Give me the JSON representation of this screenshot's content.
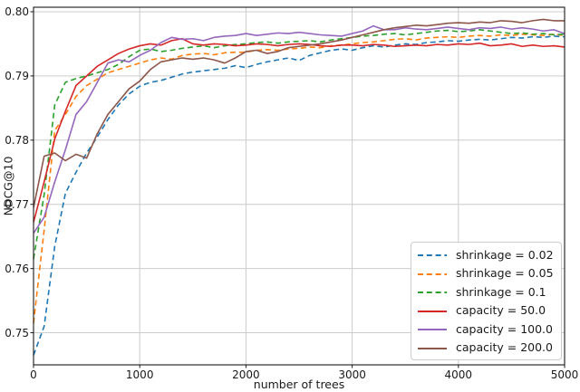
{
  "figure": {
    "background": "#ffffff",
    "axis_color": "#1a1a1a",
    "grid_color": "#cccccc",
    "legend_border_color": "#cccccc"
  },
  "chart_data": {
    "type": "line",
    "title": "",
    "xlabel": "number of trees",
    "ylabel": "NDCG@10",
    "xlim": [
      0,
      5000
    ],
    "ylim": [
      0.745,
      0.8007
    ],
    "grid": true,
    "legend_position": "lower right",
    "x_ticks": [
      0,
      1000,
      2000,
      3000,
      4000,
      5000
    ],
    "x_tick_labels": [
      "0",
      "1000",
      "2000",
      "3000",
      "4000",
      "5000"
    ],
    "y_ticks": [
      0.75,
      0.76,
      0.77,
      0.78,
      0.79,
      0.8
    ],
    "y_tick_labels": [
      "0.75",
      "0.76",
      "0.77",
      "0.78",
      "0.79",
      "0.80"
    ],
    "x_start": 0,
    "x_step": 100,
    "series": [
      {
        "label": "shrinkage = 0.02",
        "color": "#1f77b4",
        "style": "dashed",
        "values": [
          0.7465,
          0.751,
          0.7635,
          0.7717,
          0.775,
          0.778,
          0.7805,
          0.7832,
          0.7855,
          0.7872,
          0.7884,
          0.789,
          0.7893,
          0.7898,
          0.7903,
          0.7906,
          0.7908,
          0.791,
          0.7912,
          0.7916,
          0.7913,
          0.7918,
          0.7922,
          0.7925,
          0.7928,
          0.7924,
          0.7932,
          0.7936,
          0.794,
          0.7942,
          0.794,
          0.7944,
          0.7947,
          0.7945,
          0.7948,
          0.795,
          0.7949,
          0.7952,
          0.7953,
          0.7955,
          0.7954,
          0.7956,
          0.7957,
          0.7956,
          0.7958,
          0.796,
          0.7959,
          0.7961,
          0.796,
          0.7962,
          0.7961
        ]
      },
      {
        "label": "shrinkage = 0.05",
        "color": "#ff7f0e",
        "style": "dashed",
        "values": [
          0.7515,
          0.766,
          0.7815,
          0.784,
          0.7868,
          0.7885,
          0.7895,
          0.7905,
          0.791,
          0.7915,
          0.792,
          0.7925,
          0.7928,
          0.7926,
          0.7932,
          0.7934,
          0.7935,
          0.7933,
          0.7936,
          0.7937,
          0.7937,
          0.794,
          0.7941,
          0.794,
          0.7942,
          0.7943,
          0.7945,
          0.7944,
          0.7947,
          0.7948,
          0.795,
          0.7952,
          0.7953,
          0.7955,
          0.7957,
          0.7958,
          0.7956,
          0.7959,
          0.796,
          0.7961,
          0.796,
          0.7962,
          0.7963,
          0.7962,
          0.7964,
          0.7963,
          0.7965,
          0.7964,
          0.7963,
          0.7965,
          0.7963
        ]
      },
      {
        "label": "shrinkage = 0.1",
        "color": "#2ca02c",
        "style": "dashed",
        "values": [
          0.7615,
          0.7715,
          0.7855,
          0.789,
          0.7896,
          0.79,
          0.7905,
          0.791,
          0.7918,
          0.793,
          0.794,
          0.7942,
          0.7938,
          0.794,
          0.7943,
          0.7945,
          0.7947,
          0.7944,
          0.7947,
          0.7949,
          0.795,
          0.7952,
          0.7953,
          0.7951,
          0.7953,
          0.7954,
          0.7955,
          0.7953,
          0.7956,
          0.7958,
          0.796,
          0.7962,
          0.7963,
          0.7965,
          0.7966,
          0.7964,
          0.7966,
          0.7968,
          0.797,
          0.7971,
          0.7969,
          0.797,
          0.7972,
          0.797,
          0.7968,
          0.7966,
          0.7967,
          0.7965,
          0.7966,
          0.7964,
          0.7965
        ]
      },
      {
        "label": "capacity = 50.0",
        "color": "#d62728",
        "style": "solid",
        "values": [
          0.7672,
          0.7735,
          0.7802,
          0.7845,
          0.7885,
          0.79,
          0.7915,
          0.7925,
          0.7935,
          0.7942,
          0.7947,
          0.795,
          0.7948,
          0.7955,
          0.7958,
          0.795,
          0.7948,
          0.795,
          0.7949,
          0.7947,
          0.7948,
          0.795,
          0.7949,
          0.7947,
          0.7949,
          0.795,
          0.7949,
          0.7947,
          0.7946,
          0.7948,
          0.7948,
          0.7947,
          0.7949,
          0.7948,
          0.7946,
          0.7947,
          0.7948,
          0.7947,
          0.7949,
          0.7948,
          0.795,
          0.7949,
          0.7951,
          0.7947,
          0.7948,
          0.795,
          0.7946,
          0.7948,
          0.7946,
          0.7947,
          0.7945
        ]
      },
      {
        "label": "capacity = 100.0",
        "color": "#9467bd",
        "style": "solid",
        "values": [
          0.7655,
          0.768,
          0.7735,
          0.7785,
          0.784,
          0.786,
          0.789,
          0.792,
          0.7925,
          0.7922,
          0.7932,
          0.794,
          0.7952,
          0.796,
          0.7957,
          0.7958,
          0.7955,
          0.796,
          0.7962,
          0.7963,
          0.7966,
          0.7963,
          0.7965,
          0.7967,
          0.7966,
          0.7968,
          0.7966,
          0.7964,
          0.7963,
          0.7962,
          0.7966,
          0.797,
          0.7978,
          0.7972,
          0.7972,
          0.7975,
          0.7973,
          0.7972,
          0.7974,
          0.7976,
          0.7974,
          0.7972,
          0.7975,
          0.7974,
          0.7976,
          0.7973,
          0.7975,
          0.7973,
          0.797,
          0.7972,
          0.7966
        ]
      },
      {
        "label": "capacity = 200.0",
        "color": "#8c564b",
        "style": "solid",
        "values": [
          0.7695,
          0.7775,
          0.778,
          0.7768,
          0.7778,
          0.7772,
          0.781,
          0.784,
          0.786,
          0.788,
          0.7892,
          0.791,
          0.7922,
          0.7925,
          0.7928,
          0.7926,
          0.7928,
          0.7925,
          0.792,
          0.7928,
          0.7938,
          0.794,
          0.7935,
          0.7938,
          0.7944,
          0.7946,
          0.7948,
          0.795,
          0.7953,
          0.7956,
          0.796,
          0.7964,
          0.7968,
          0.7972,
          0.7975,
          0.7977,
          0.7979,
          0.7978,
          0.798,
          0.7982,
          0.7983,
          0.7982,
          0.7984,
          0.7983,
          0.7986,
          0.7985,
          0.7983,
          0.7986,
          0.7988,
          0.7986,
          0.7986
        ]
      }
    ]
  }
}
